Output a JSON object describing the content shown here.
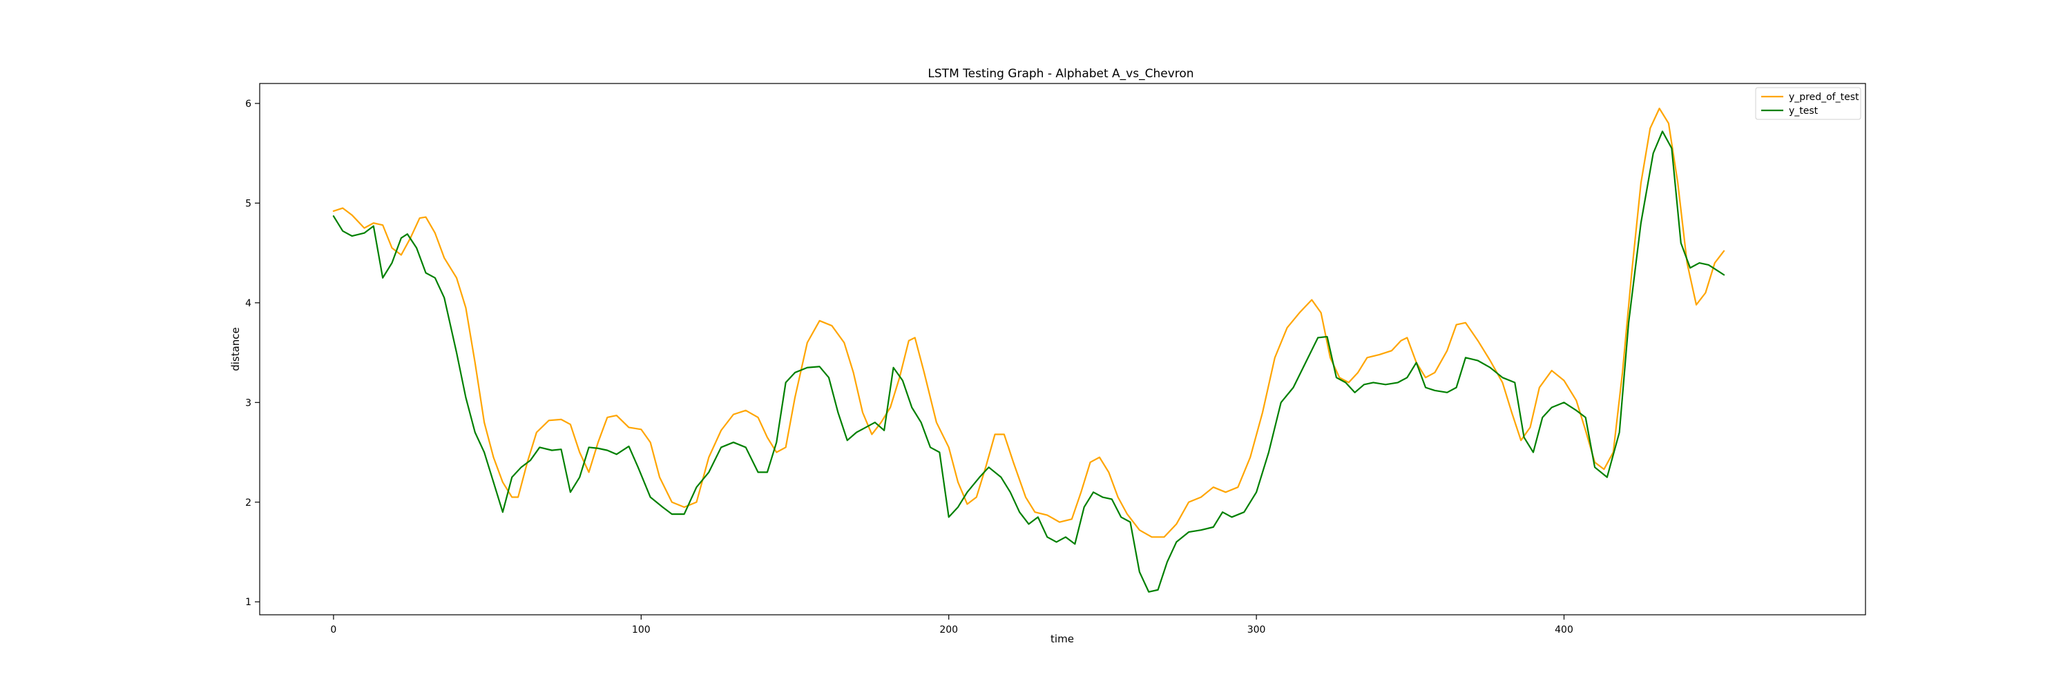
{
  "chart_data": {
    "type": "line",
    "title": "LSTM Testing Graph - Alphabet A_vs_Chevron",
    "xlabel": "time",
    "ylabel": "distance",
    "xlim": [
      -24,
      498
    ],
    "ylim": [
      0.87,
      6.2
    ],
    "xticks": [
      0,
      100,
      200,
      300,
      400
    ],
    "yticks": [
      1,
      2,
      3,
      4,
      5,
      6
    ],
    "grid": false,
    "legend_position": "top-right",
    "colors": {
      "y_pred_of_test": "#FFA500",
      "y_test": "#008000"
    },
    "series": [
      {
        "name": "y_pred_of_test",
        "color": "#FFA500",
        "points": [
          [
            0,
            4.92
          ],
          [
            3,
            4.95
          ],
          [
            6,
            4.88
          ],
          [
            10,
            4.75
          ],
          [
            13,
            4.8
          ],
          [
            16,
            4.78
          ],
          [
            19,
            4.55
          ],
          [
            22,
            4.48
          ],
          [
            25,
            4.65
          ],
          [
            28,
            4.85
          ],
          [
            30,
            4.86
          ],
          [
            33,
            4.7
          ],
          [
            36,
            4.45
          ],
          [
            40,
            4.25
          ],
          [
            43,
            3.95
          ],
          [
            46,
            3.4
          ],
          [
            49,
            2.8
          ],
          [
            52,
            2.45
          ],
          [
            55,
            2.2
          ],
          [
            58,
            2.05
          ],
          [
            60,
            2.05
          ],
          [
            63,
            2.4
          ],
          [
            66,
            2.7
          ],
          [
            70,
            2.82
          ],
          [
            74,
            2.83
          ],
          [
            77,
            2.78
          ],
          [
            80,
            2.5
          ],
          [
            83,
            2.3
          ],
          [
            86,
            2.6
          ],
          [
            89,
            2.85
          ],
          [
            92,
            2.87
          ],
          [
            96,
            2.75
          ],
          [
            100,
            2.73
          ],
          [
            103,
            2.6
          ],
          [
            106,
            2.25
          ],
          [
            110,
            2.0
          ],
          [
            114,
            1.95
          ],
          [
            118,
            2.0
          ],
          [
            122,
            2.45
          ],
          [
            126,
            2.72
          ],
          [
            130,
            2.88
          ],
          [
            134,
            2.92
          ],
          [
            138,
            2.85
          ],
          [
            141,
            2.65
          ],
          [
            144,
            2.5
          ],
          [
            147,
            2.55
          ],
          [
            150,
            3.05
          ],
          [
            154,
            3.6
          ],
          [
            158,
            3.82
          ],
          [
            162,
            3.77
          ],
          [
            166,
            3.6
          ],
          [
            169,
            3.3
          ],
          [
            172,
            2.9
          ],
          [
            175,
            2.68
          ],
          [
            178,
            2.8
          ],
          [
            181,
            2.95
          ],
          [
            184,
            3.25
          ],
          [
            187,
            3.62
          ],
          [
            189,
            3.65
          ],
          [
            192,
            3.3
          ],
          [
            196,
            2.8
          ],
          [
            200,
            2.55
          ],
          [
            203,
            2.2
          ],
          [
            206,
            1.98
          ],
          [
            209,
            2.05
          ],
          [
            212,
            2.35
          ],
          [
            215,
            2.68
          ],
          [
            218,
            2.68
          ],
          [
            221,
            2.4
          ],
          [
            225,
            2.05
          ],
          [
            228,
            1.9
          ],
          [
            232,
            1.87
          ],
          [
            236,
            1.8
          ],
          [
            240,
            1.83
          ],
          [
            243,
            2.1
          ],
          [
            246,
            2.4
          ],
          [
            249,
            2.45
          ],
          [
            252,
            2.3
          ],
          [
            255,
            2.05
          ],
          [
            258,
            1.88
          ],
          [
            262,
            1.72
          ],
          [
            266,
            1.65
          ],
          [
            270,
            1.65
          ],
          [
            274,
            1.78
          ],
          [
            278,
            2.0
          ],
          [
            282,
            2.05
          ],
          [
            286,
            2.15
          ],
          [
            290,
            2.1
          ],
          [
            294,
            2.15
          ],
          [
            298,
            2.45
          ],
          [
            302,
            2.9
          ],
          [
            306,
            3.45
          ],
          [
            310,
            3.75
          ],
          [
            314,
            3.9
          ],
          [
            318,
            4.03
          ],
          [
            321,
            3.9
          ],
          [
            324,
            3.45
          ],
          [
            327,
            3.25
          ],
          [
            330,
            3.2
          ],
          [
            333,
            3.3
          ],
          [
            336,
            3.45
          ],
          [
            340,
            3.48
          ],
          [
            344,
            3.52
          ],
          [
            347,
            3.62
          ],
          [
            349,
            3.65
          ],
          [
            352,
            3.4
          ],
          [
            355,
            3.25
          ],
          [
            358,
            3.3
          ],
          [
            362,
            3.52
          ],
          [
            365,
            3.78
          ],
          [
            368,
            3.8
          ],
          [
            372,
            3.62
          ],
          [
            376,
            3.42
          ],
          [
            380,
            3.2
          ],
          [
            383,
            2.9
          ],
          [
            386,
            2.62
          ],
          [
            389,
            2.75
          ],
          [
            392,
            3.15
          ],
          [
            396,
            3.32
          ],
          [
            400,
            3.22
          ],
          [
            404,
            3.02
          ],
          [
            407,
            2.72
          ],
          [
            410,
            2.4
          ],
          [
            413,
            2.33
          ],
          [
            416,
            2.5
          ],
          [
            419,
            3.3
          ],
          [
            422,
            4.3
          ],
          [
            425,
            5.2
          ],
          [
            428,
            5.75
          ],
          [
            431,
            5.95
          ],
          [
            434,
            5.8
          ],
          [
            437,
            5.2
          ],
          [
            440,
            4.4
          ],
          [
            443,
            3.98
          ],
          [
            446,
            4.1
          ],
          [
            449,
            4.4
          ],
          [
            452,
            4.52
          ]
        ]
      },
      {
        "name": "y_test",
        "color": "#008000",
        "points": [
          [
            0,
            4.87
          ],
          [
            3,
            4.72
          ],
          [
            6,
            4.67
          ],
          [
            10,
            4.7
          ],
          [
            13,
            4.77
          ],
          [
            16,
            4.25
          ],
          [
            19,
            4.4
          ],
          [
            22,
            4.65
          ],
          [
            24,
            4.69
          ],
          [
            27,
            4.55
          ],
          [
            30,
            4.3
          ],
          [
            33,
            4.25
          ],
          [
            36,
            4.05
          ],
          [
            40,
            3.5
          ],
          [
            43,
            3.05
          ],
          [
            46,
            2.7
          ],
          [
            49,
            2.5
          ],
          [
            52,
            2.2
          ],
          [
            55,
            1.9
          ],
          [
            58,
            2.25
          ],
          [
            61,
            2.35
          ],
          [
            64,
            2.42
          ],
          [
            67,
            2.55
          ],
          [
            71,
            2.52
          ],
          [
            74,
            2.53
          ],
          [
            77,
            2.1
          ],
          [
            80,
            2.25
          ],
          [
            83,
            2.55
          ],
          [
            86,
            2.54
          ],
          [
            89,
            2.52
          ],
          [
            92,
            2.48
          ],
          [
            96,
            2.56
          ],
          [
            99,
            2.35
          ],
          [
            103,
            2.05
          ],
          [
            107,
            1.95
          ],
          [
            110,
            1.88
          ],
          [
            114,
            1.88
          ],
          [
            118,
            2.15
          ],
          [
            122,
            2.3
          ],
          [
            126,
            2.55
          ],
          [
            130,
            2.6
          ],
          [
            134,
            2.55
          ],
          [
            138,
            2.3
          ],
          [
            141,
            2.3
          ],
          [
            144,
            2.6
          ],
          [
            147,
            3.2
          ],
          [
            150,
            3.3
          ],
          [
            154,
            3.35
          ],
          [
            158,
            3.36
          ],
          [
            161,
            3.25
          ],
          [
            164,
            2.9
          ],
          [
            167,
            2.62
          ],
          [
            170,
            2.7
          ],
          [
            173,
            2.75
          ],
          [
            176,
            2.8
          ],
          [
            179,
            2.72
          ],
          [
            182,
            3.35
          ],
          [
            185,
            3.22
          ],
          [
            188,
            2.95
          ],
          [
            191,
            2.8
          ],
          [
            194,
            2.55
          ],
          [
            197,
            2.5
          ],
          [
            200,
            1.85
          ],
          [
            203,
            1.95
          ],
          [
            206,
            2.1
          ],
          [
            210,
            2.25
          ],
          [
            213,
            2.35
          ],
          [
            217,
            2.25
          ],
          [
            220,
            2.1
          ],
          [
            223,
            1.9
          ],
          [
            226,
            1.78
          ],
          [
            229,
            1.85
          ],
          [
            232,
            1.65
          ],
          [
            235,
            1.6
          ],
          [
            238,
            1.65
          ],
          [
            241,
            1.58
          ],
          [
            244,
            1.95
          ],
          [
            247,
            2.1
          ],
          [
            250,
            2.05
          ],
          [
            253,
            2.03
          ],
          [
            256,
            1.85
          ],
          [
            259,
            1.8
          ],
          [
            262,
            1.3
          ],
          [
            265,
            1.1
          ],
          [
            268,
            1.12
          ],
          [
            271,
            1.4
          ],
          [
            274,
            1.6
          ],
          [
            278,
            1.7
          ],
          [
            282,
            1.72
          ],
          [
            286,
            1.75
          ],
          [
            289,
            1.9
          ],
          [
            292,
            1.85
          ],
          [
            296,
            1.9
          ],
          [
            300,
            2.1
          ],
          [
            304,
            2.5
          ],
          [
            308,
            3.0
          ],
          [
            312,
            3.15
          ],
          [
            316,
            3.4
          ],
          [
            320,
            3.65
          ],
          [
            323,
            3.66
          ],
          [
            326,
            3.25
          ],
          [
            329,
            3.2
          ],
          [
            332,
            3.1
          ],
          [
            335,
            3.18
          ],
          [
            338,
            3.2
          ],
          [
            342,
            3.18
          ],
          [
            346,
            3.2
          ],
          [
            349,
            3.25
          ],
          [
            352,
            3.4
          ],
          [
            355,
            3.15
          ],
          [
            358,
            3.12
          ],
          [
            362,
            3.1
          ],
          [
            365,
            3.15
          ],
          [
            368,
            3.45
          ],
          [
            372,
            3.42
          ],
          [
            376,
            3.35
          ],
          [
            380,
            3.25
          ],
          [
            384,
            3.2
          ],
          [
            387,
            2.65
          ],
          [
            390,
            2.5
          ],
          [
            393,
            2.85
          ],
          [
            396,
            2.95
          ],
          [
            400,
            3.0
          ],
          [
            404,
            2.92
          ],
          [
            407,
            2.85
          ],
          [
            410,
            2.35
          ],
          [
            414,
            2.25
          ],
          [
            418,
            2.7
          ],
          [
            421,
            3.8
          ],
          [
            425,
            4.8
          ],
          [
            429,
            5.5
          ],
          [
            432,
            5.72
          ],
          [
            435,
            5.55
          ],
          [
            438,
            4.6
          ],
          [
            441,
            4.35
          ],
          [
            444,
            4.4
          ],
          [
            447,
            4.38
          ],
          [
            450,
            4.32
          ],
          [
            452,
            4.28
          ]
        ]
      }
    ]
  }
}
